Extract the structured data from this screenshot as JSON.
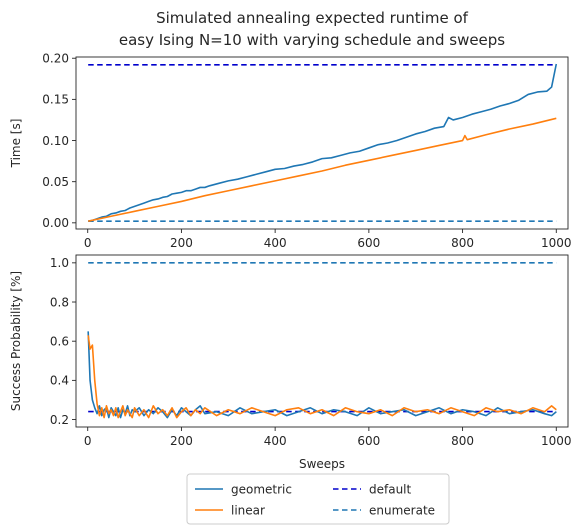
{
  "figure": {
    "title_line1": "Simulated annealing expected runtime of",
    "title_line2": "easy Ising N=10 with varying schedule and sweeps"
  },
  "legend": {
    "entries": [
      {
        "label": "geometric",
        "color": "#1f77b4",
        "style": "solid"
      },
      {
        "label": "default",
        "color": "#0000cc",
        "style": "dashed"
      },
      {
        "label": "linear",
        "color": "#ff7f0e",
        "style": "solid"
      },
      {
        "label": "enumerate",
        "color": "#1f77b4",
        "style": "dashed"
      }
    ],
    "placement": "below-bottom-center",
    "columns": 2
  },
  "chart_data": [
    {
      "type": "line",
      "title": "",
      "xlabel": "",
      "ylabel": "Time [s]",
      "xlim": [
        -25,
        1025
      ],
      "ylim": [
        -0.0075,
        0.2015
      ],
      "xticks": [
        0,
        200,
        400,
        600,
        800,
        1000
      ],
      "xtick_labels": [
        "0",
        "200",
        "400",
        "600",
        "800",
        "1000"
      ],
      "yticks": [
        0.0,
        0.05,
        0.1,
        0.15,
        0.2
      ],
      "ytick_labels": [
        "0.00",
        "0.05",
        "0.10",
        "0.15",
        "0.20"
      ],
      "grid": false,
      "series": [
        {
          "name": "geometric",
          "color": "#1f77b4",
          "style": "solid",
          "x": [
            1,
            10,
            20,
            30,
            40,
            50,
            60,
            70,
            80,
            90,
            100,
            110,
            120,
            130,
            140,
            150,
            160,
            170,
            180,
            190,
            200,
            210,
            220,
            230,
            240,
            250,
            260,
            280,
            300,
            320,
            340,
            360,
            380,
            400,
            420,
            440,
            460,
            480,
            500,
            520,
            540,
            560,
            580,
            600,
            620,
            640,
            660,
            680,
            700,
            720,
            740,
            760,
            770,
            780,
            800,
            820,
            840,
            860,
            880,
            900,
            920,
            940,
            960,
            980,
            990,
            1000
          ],
          "y": [
            0.002,
            0.003,
            0.005,
            0.007,
            0.008,
            0.011,
            0.012,
            0.014,
            0.015,
            0.018,
            0.02,
            0.022,
            0.024,
            0.026,
            0.028,
            0.029,
            0.031,
            0.032,
            0.035,
            0.036,
            0.037,
            0.039,
            0.039,
            0.041,
            0.043,
            0.043,
            0.045,
            0.048,
            0.051,
            0.053,
            0.056,
            0.059,
            0.062,
            0.065,
            0.066,
            0.069,
            0.071,
            0.074,
            0.078,
            0.079,
            0.082,
            0.085,
            0.087,
            0.091,
            0.095,
            0.097,
            0.1,
            0.104,
            0.108,
            0.111,
            0.115,
            0.117,
            0.128,
            0.125,
            0.128,
            0.132,
            0.135,
            0.138,
            0.142,
            0.145,
            0.149,
            0.156,
            0.159,
            0.16,
            0.165,
            0.193
          ]
        },
        {
          "name": "linear",
          "color": "#ff7f0e",
          "style": "solid",
          "x": [
            1,
            50,
            100,
            150,
            200,
            250,
            300,
            350,
            400,
            450,
            500,
            550,
            600,
            650,
            700,
            750,
            800,
            805,
            810,
            850,
            900,
            950,
            1000
          ],
          "y": [
            0.002,
            0.008,
            0.014,
            0.02,
            0.026,
            0.033,
            0.039,
            0.045,
            0.051,
            0.057,
            0.063,
            0.07,
            0.076,
            0.082,
            0.088,
            0.094,
            0.1,
            0.106,
            0.101,
            0.107,
            0.114,
            0.12,
            0.127
          ]
        },
        {
          "name": "default",
          "color": "#0000cc",
          "style": "dashed",
          "x": [
            1,
            1000
          ],
          "y": [
            0.192,
            0.192
          ]
        },
        {
          "name": "enumerate",
          "color": "#1f77b4",
          "style": "dashed",
          "x": [
            1,
            1000
          ],
          "y": [
            0.002,
            0.002
          ]
        }
      ]
    },
    {
      "type": "line",
      "title": "",
      "xlabel": "Sweeps",
      "ylabel": "Success Probability [%]",
      "xlim": [
        -25,
        1025
      ],
      "ylim": [
        0.162,
        1.04
      ],
      "xticks": [
        0,
        200,
        400,
        600,
        800,
        1000
      ],
      "xtick_labels": [
        "0",
        "200",
        "400",
        "600",
        "800",
        "1000"
      ],
      "yticks": [
        0.2,
        0.4,
        0.6,
        0.8,
        1.0
      ],
      "ytick_labels": [
        "0.2",
        "0.4",
        "0.6",
        "0.8",
        "1.0"
      ],
      "grid": false,
      "series": [
        {
          "name": "geometric",
          "color": "#1f77b4",
          "style": "solid",
          "x": [
            1,
            5,
            10,
            15,
            20,
            25,
            30,
            35,
            40,
            45,
            50,
            55,
            60,
            65,
            70,
            75,
            80,
            85,
            90,
            95,
            100,
            110,
            120,
            130,
            140,
            150,
            160,
            170,
            180,
            190,
            200,
            210,
            220,
            230,
            240,
            250,
            275,
            300,
            325,
            350,
            375,
            400,
            425,
            450,
            475,
            500,
            525,
            550,
            575,
            600,
            625,
            650,
            675,
            700,
            725,
            750,
            775,
            800,
            825,
            850,
            875,
            900,
            925,
            950,
            975,
            990,
            1000
          ],
          "y": [
            0.65,
            0.4,
            0.3,
            0.26,
            0.23,
            0.27,
            0.22,
            0.25,
            0.26,
            0.21,
            0.26,
            0.24,
            0.22,
            0.26,
            0.21,
            0.25,
            0.23,
            0.27,
            0.22,
            0.25,
            0.24,
            0.26,
            0.22,
            0.25,
            0.23,
            0.26,
            0.24,
            0.21,
            0.25,
            0.22,
            0.26,
            0.24,
            0.22,
            0.25,
            0.27,
            0.23,
            0.24,
            0.22,
            0.26,
            0.23,
            0.24,
            0.25,
            0.22,
            0.24,
            0.26,
            0.23,
            0.25,
            0.24,
            0.22,
            0.26,
            0.23,
            0.24,
            0.25,
            0.22,
            0.24,
            0.26,
            0.23,
            0.25,
            0.24,
            0.22,
            0.26,
            0.23,
            0.24,
            0.25,
            0.23,
            0.22,
            0.24
          ]
        },
        {
          "name": "linear",
          "color": "#ff7f0e",
          "style": "solid",
          "x": [
            1,
            5,
            10,
            15,
            20,
            25,
            30,
            35,
            40,
            45,
            50,
            55,
            60,
            65,
            70,
            75,
            80,
            85,
            90,
            95,
            100,
            110,
            120,
            130,
            140,
            150,
            160,
            170,
            180,
            190,
            200,
            210,
            220,
            230,
            240,
            250,
            275,
            300,
            325,
            350,
            375,
            400,
            425,
            450,
            475,
            500,
            525,
            550,
            575,
            600,
            625,
            650,
            675,
            700,
            725,
            750,
            775,
            800,
            825,
            850,
            875,
            900,
            925,
            950,
            975,
            990,
            1000
          ],
          "y": [
            0.63,
            0.56,
            0.58,
            0.4,
            0.28,
            0.22,
            0.26,
            0.21,
            0.27,
            0.23,
            0.25,
            0.22,
            0.26,
            0.21,
            0.24,
            0.27,
            0.22,
            0.25,
            0.23,
            0.21,
            0.26,
            0.22,
            0.25,
            0.21,
            0.27,
            0.23,
            0.25,
            0.22,
            0.26,
            0.21,
            0.24,
            0.26,
            0.22,
            0.25,
            0.23,
            0.26,
            0.22,
            0.25,
            0.23,
            0.26,
            0.24,
            0.22,
            0.25,
            0.26,
            0.23,
            0.25,
            0.22,
            0.26,
            0.24,
            0.23,
            0.25,
            0.22,
            0.26,
            0.24,
            0.25,
            0.23,
            0.26,
            0.24,
            0.22,
            0.26,
            0.24,
            0.25,
            0.23,
            0.26,
            0.24,
            0.27,
            0.25
          ]
        },
        {
          "name": "default",
          "color": "#0000cc",
          "style": "dashed",
          "x": [
            1,
            1000
          ],
          "y": [
            0.241,
            0.241
          ]
        },
        {
          "name": "enumerate",
          "color": "#1f77b4",
          "style": "dashed",
          "x": [
            1,
            1000
          ],
          "y": [
            1.0,
            1.0
          ]
        }
      ]
    }
  ]
}
